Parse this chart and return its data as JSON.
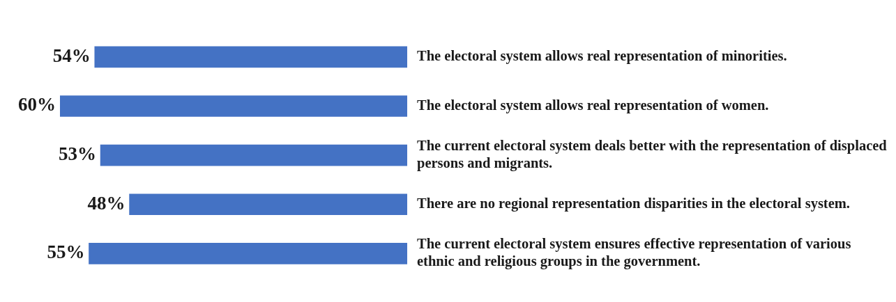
{
  "chart_data": {
    "type": "bar",
    "orientation": "horizontal",
    "categories": [
      "The electoral system allows real representation of minorities.",
      "The electoral system allows real representation of women.",
      "The current electoral system deals better with the representation of displaced persons and migrants.",
      "There are no regional representation disparities in the electoral system.",
      "The current electoral system ensures effective representation of various ethnic and religious groups in the government."
    ],
    "values": [
      54,
      60,
      53,
      48,
      55
    ],
    "value_labels": [
      "54%",
      "60%",
      "53%",
      "48%",
      "55%"
    ],
    "color": "#4472c4",
    "tick_labels": "y",
    "grid": false,
    "legend": false
  }
}
